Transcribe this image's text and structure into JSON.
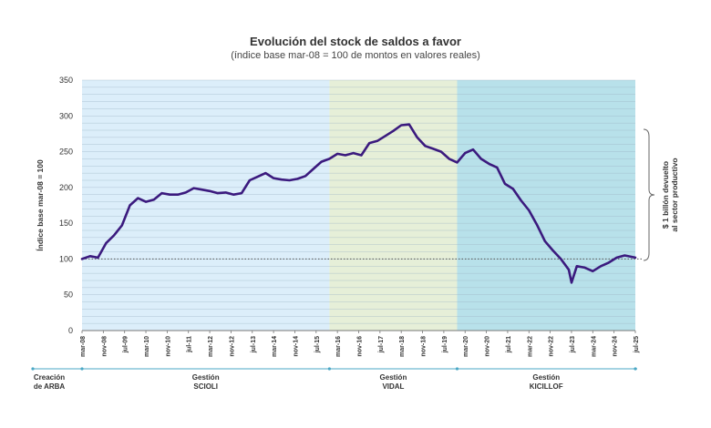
{
  "chart_data": {
    "type": "line",
    "title": "Evolución del stock de saldos a favor",
    "subtitle": "(índice base mar-08 = 100 de montos en valores reales)",
    "ylabel": "Índice base mar-08 = 100",
    "ylim": [
      0,
      350
    ],
    "yticks": [
      0,
      50,
      100,
      150,
      200,
      250,
      300,
      350
    ],
    "xlim": [
      "2008-03",
      "2025-07"
    ],
    "xticks": [
      "mar-08",
      "nov-08",
      "jul-09",
      "mar-10",
      "nov-10",
      "jul-11",
      "mar-12",
      "nov-12",
      "jul-13",
      "mar-14",
      "nov-14",
      "jul-15",
      "mar-16",
      "nov-16",
      "jul-17",
      "mar-18",
      "nov-18",
      "jul-19",
      "mar-20",
      "nov-20",
      "jul-21",
      "mar-22",
      "nov-22",
      "jul-23",
      "mar-24",
      "nov-24",
      "jul-25"
    ],
    "grid": true,
    "reference_line": 100,
    "periods": [
      {
        "label": "Creación de ARBA",
        "start": "2008-03",
        "end": "2008-03"
      },
      {
        "label": "Gestión SCIOLI",
        "start": "2008-03",
        "end": "2015-12",
        "color": "#dceefa"
      },
      {
        "label": "Gestión VIDAL",
        "start": "2015-12",
        "end": "2019-12",
        "color": "#e6efd8"
      },
      {
        "label": "Gestión KICILLOF",
        "start": "2019-12",
        "end": "2025-07",
        "color": "#b8e1ea"
      }
    ],
    "annotation": "$ 1 billón devuelto al sector productivo",
    "line_color": "#3b1a7e",
    "x": [
      "2008-03",
      "2008-06",
      "2008-09",
      "2008-12",
      "2009-03",
      "2009-06",
      "2009-09",
      "2009-12",
      "2010-03",
      "2010-06",
      "2010-09",
      "2010-12",
      "2011-03",
      "2011-06",
      "2011-09",
      "2011-12",
      "2012-03",
      "2012-06",
      "2012-09",
      "2012-12",
      "2013-03",
      "2013-06",
      "2013-09",
      "2013-12",
      "2014-03",
      "2014-06",
      "2014-09",
      "2014-12",
      "2015-03",
      "2015-06",
      "2015-09",
      "2015-12",
      "2016-03",
      "2016-06",
      "2016-09",
      "2016-12",
      "2017-03",
      "2017-06",
      "2017-09",
      "2017-12",
      "2018-03",
      "2018-06",
      "2018-09",
      "2018-12",
      "2019-03",
      "2019-06",
      "2019-09",
      "2019-12",
      "2020-03",
      "2020-06",
      "2020-09",
      "2020-12",
      "2021-03",
      "2021-06",
      "2021-09",
      "2021-12",
      "2022-03",
      "2022-06",
      "2022-09",
      "2022-12",
      "2023-03",
      "2023-06",
      "2023-07",
      "2023-09",
      "2023-12",
      "2024-03",
      "2024-06",
      "2024-09",
      "2024-12",
      "2025-03",
      "2025-07"
    ],
    "values": [
      100,
      104,
      102,
      122,
      133,
      147,
      175,
      185,
      180,
      183,
      192,
      190,
      190,
      193,
      199,
      197,
      195,
      192,
      193,
      190,
      192,
      210,
      215,
      220,
      213,
      211,
      210,
      212,
      216,
      226,
      236,
      240,
      247,
      245,
      248,
      245,
      262,
      265,
      272,
      279,
      287,
      288,
      270,
      258,
      254,
      250,
      240,
      235,
      248,
      253,
      240,
      233,
      228,
      205,
      198,
      182,
      168,
      148,
      125,
      112,
      100,
      85,
      67,
      90,
      88,
      83,
      90,
      95,
      102,
      105,
      102
    ]
  }
}
